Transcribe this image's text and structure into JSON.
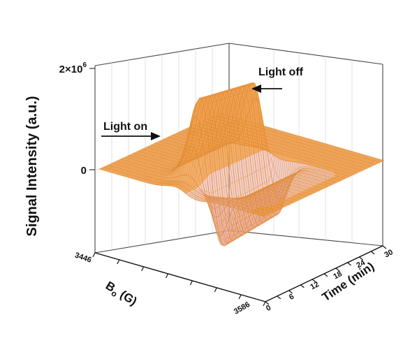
{
  "chart_data": {
    "type": "surface-3d",
    "ylabel": "Signal Intensity (a.u.)",
    "z_ticks": [
      {
        "value": 2000000,
        "base": "2×10",
        "exp": "6"
      },
      {
        "value": 0,
        "base": "0",
        "exp": ""
      }
    ],
    "b_axis": {
      "label": "B",
      "sub": "o",
      "unit": " (G)",
      "range": [
        3446,
        3586
      ],
      "ticks": [
        "3446",
        "3586"
      ]
    },
    "time_axis": {
      "label": "Time (min)",
      "range": [
        0,
        30
      ],
      "ticks": [
        "0",
        "6",
        "12",
        "18",
        "24",
        "30"
      ]
    },
    "annotations": {
      "light_on": "Light on",
      "light_off": "Light off"
    },
    "colors": {
      "surface_top": "#f0a050",
      "surface_bottom": "#e8a8a0",
      "mesh": "#e08a30",
      "background": "#ffffff"
    },
    "signal": {
      "shape": "first-derivative EPR line",
      "peak_B_field": 3510,
      "trough_B_field": 3530,
      "light_on_min": 3,
      "light_off_min": 20,
      "max_intensity": 1600000,
      "min_intensity": -1200000
    }
  }
}
